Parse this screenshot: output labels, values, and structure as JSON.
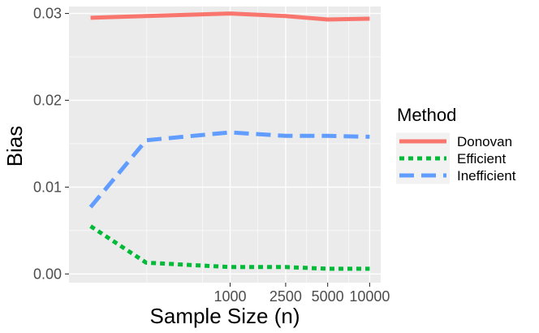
{
  "chart_data": {
    "type": "line",
    "xlabel": "Sample Size (n)",
    "ylabel": "Bias",
    "x_scale": "log",
    "x": [
      100,
      250,
      1000,
      2500,
      5000,
      10000
    ],
    "x_ticks": [
      1000,
      2500,
      5000,
      10000
    ],
    "x_tick_labels": [
      "1000",
      "2500",
      "5000",
      "10000"
    ],
    "xlim": [
      70,
      12000
    ],
    "ylim": [
      -0.001,
      0.0308
    ],
    "y_ticks": [
      0.0,
      0.01,
      0.02,
      0.03
    ],
    "y_tick_labels": [
      "0.00",
      "0.01",
      "0.02",
      "0.03"
    ],
    "grid": true,
    "legend": {
      "title": "Method",
      "position": "right"
    },
    "series": [
      {
        "name": "Donovan",
        "color": "#F8766D",
        "linestyle": "solid",
        "values": [
          0.0295,
          0.0297,
          0.03,
          0.0297,
          0.0293,
          0.0294
        ]
      },
      {
        "name": "Efficient",
        "color": "#00BA38",
        "linestyle": "dotted",
        "values": [
          0.0055,
          0.0013,
          0.0008,
          0.0008,
          0.0006,
          0.0006
        ]
      },
      {
        "name": "Inefficient",
        "color": "#619CFF",
        "linestyle": "dashed",
        "values": [
          0.0077,
          0.0154,
          0.0163,
          0.0159,
          0.0159,
          0.0158
        ]
      }
    ]
  }
}
